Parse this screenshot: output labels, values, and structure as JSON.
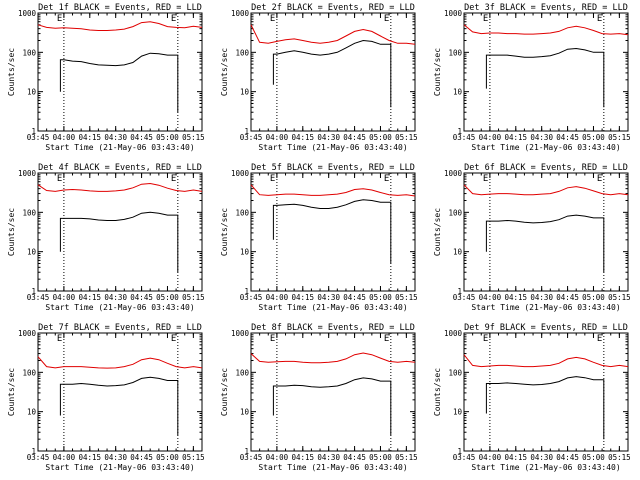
{
  "colors": {
    "events": "#000000",
    "lld": "#e00000",
    "axes": "#000000",
    "background": "#ffffff"
  },
  "chart_data": [
    {
      "type": "line",
      "title": "Det 1f BLACK = Events, RED = LLD",
      "xlabel": "Start Time (21-May-06 03:43:40)",
      "ylabel": "Counts/sec",
      "yscale": "log",
      "ylim": [
        1,
        1000
      ],
      "yticks": [
        "1",
        "10",
        "100",
        "1000"
      ],
      "xticks": [
        "03:45",
        "04:00",
        "04:15",
        "04:30",
        "04:45",
        "05:00",
        "05:15"
      ],
      "x_range": [
        "03:45",
        "05:20"
      ],
      "marker_lines": [
        "04:00",
        "05:06"
      ],
      "marker_labels": [
        "E",
        "E"
      ],
      "x": [
        "03:45",
        "03:50",
        "03:55",
        "04:00",
        "04:05",
        "04:10",
        "04:15",
        "04:20",
        "04:25",
        "04:30",
        "04:35",
        "04:40",
        "04:45",
        "04:50",
        "04:55",
        "05:00",
        "05:05",
        "05:10",
        "05:15",
        "05:20"
      ],
      "series": [
        {
          "name": "Events",
          "values": [
            null,
            null,
            null,
            65,
            60,
            58,
            52,
            48,
            47,
            46,
            48,
            55,
            80,
            95,
            92,
            85,
            null,
            null,
            null,
            null
          ],
          "segment_start": {
            "x": "03:58",
            "value": 10
          },
          "segment_end": {
            "x": "05:06",
            "value": 3
          }
        },
        {
          "name": "LLD",
          "values": [
            500,
            430,
            410,
            420,
            410,
            400,
            370,
            360,
            360,
            370,
            390,
            450,
            570,
            600,
            540,
            450,
            430,
            420,
            460,
            430
          ]
        }
      ]
    },
    {
      "type": "line",
      "title": "Det 2f BLACK = Events, RED = LLD",
      "xlabel": "Start Time (21-May-06 03:43:40)",
      "ylabel": "Counts/sec",
      "yscale": "log",
      "ylim": [
        1,
        1000
      ],
      "yticks": [
        "1",
        "10",
        "100",
        "1000"
      ],
      "xticks": [
        "03:45",
        "04:00",
        "04:15",
        "04:30",
        "04:45",
        "05:00",
        "05:15"
      ],
      "x_range": [
        "03:45",
        "05:20"
      ],
      "marker_lines": [
        "04:00",
        "05:06"
      ],
      "marker_labels": [
        "E",
        "E"
      ],
      "x": [
        "03:45",
        "03:50",
        "03:55",
        "04:00",
        "04:05",
        "04:10",
        "04:15",
        "04:20",
        "04:25",
        "04:30",
        "04:35",
        "04:40",
        "04:45",
        "04:50",
        "04:55",
        "05:00",
        "05:05",
        "05:10",
        "05:15",
        "05:20"
      ],
      "series": [
        {
          "name": "Events",
          "values": [
            null,
            null,
            null,
            90,
            100,
            110,
            100,
            90,
            85,
            90,
            100,
            130,
            170,
            200,
            190,
            160,
            null,
            null,
            null,
            null
          ],
          "segment_start": {
            "x": "03:58",
            "value": 15
          },
          "segment_end": {
            "x": "05:06",
            "value": 4
          }
        },
        {
          "name": "LLD",
          "values": [
            500,
            180,
            170,
            190,
            210,
            220,
            200,
            180,
            170,
            180,
            200,
            260,
            340,
            380,
            340,
            260,
            200,
            170,
            170,
            160
          ]
        }
      ]
    },
    {
      "type": "line",
      "title": "Det 3f BLACK = Events, RED = LLD",
      "xlabel": "Start Time (21-May-06 03:43:40)",
      "ylabel": "Counts/sec",
      "yscale": "log",
      "ylim": [
        1,
        1000
      ],
      "yticks": [
        "1",
        "10",
        "100",
        "1000"
      ],
      "xticks": [
        "03:45",
        "04:00",
        "04:15",
        "04:30",
        "04:45",
        "05:00",
        "05:15"
      ],
      "x_range": [
        "03:45",
        "05:20"
      ],
      "marker_lines": [
        "04:00",
        "05:06"
      ],
      "marker_labels": [
        "E",
        "E"
      ],
      "x": [
        "03:45",
        "03:50",
        "03:55",
        "04:00",
        "04:05",
        "04:10",
        "04:15",
        "04:20",
        "04:25",
        "04:30",
        "04:35",
        "04:40",
        "04:45",
        "04:50",
        "04:55",
        "05:00",
        "05:05",
        "05:10",
        "05:15",
        "05:20"
      ],
      "series": [
        {
          "name": "Events",
          "values": [
            null,
            null,
            null,
            85,
            85,
            85,
            80,
            75,
            75,
            78,
            82,
            95,
            120,
            125,
            115,
            100,
            null,
            null,
            null,
            null
          ],
          "segment_start": {
            "x": "03:58",
            "value": 12
          },
          "segment_end": {
            "x": "05:06",
            "value": 4
          }
        },
        {
          "name": "LLD",
          "values": [
            500,
            330,
            300,
            310,
            310,
            300,
            300,
            290,
            290,
            300,
            310,
            340,
            420,
            460,
            420,
            360,
            300,
            290,
            300,
            280
          ]
        }
      ]
    },
    {
      "type": "line",
      "title": "Det 4f BLACK = Events, RED = LLD",
      "xlabel": "Start Time (21-May-06 03:43:40)",
      "ylabel": "Counts/sec",
      "yscale": "log",
      "ylim": [
        1,
        1000
      ],
      "yticks": [
        "1",
        "10",
        "100",
        "1000"
      ],
      "xticks": [
        "03:45",
        "04:00",
        "04:15",
        "04:30",
        "04:45",
        "05:00",
        "05:15"
      ],
      "x_range": [
        "03:45",
        "05:20"
      ],
      "marker_lines": [
        "04:00",
        "05:06"
      ],
      "marker_labels": [
        "E",
        "E"
      ],
      "x": [
        "03:45",
        "03:50",
        "03:55",
        "04:00",
        "04:05",
        "04:10",
        "04:15",
        "04:20",
        "04:25",
        "04:30",
        "04:35",
        "04:40",
        "04:45",
        "04:50",
        "04:55",
        "05:00",
        "05:05",
        "05:10",
        "05:15",
        "05:20"
      ],
      "series": [
        {
          "name": "Events",
          "values": [
            null,
            null,
            null,
            70,
            70,
            70,
            68,
            64,
            62,
            62,
            66,
            75,
            95,
            100,
            95,
            85,
            null,
            null,
            null,
            null
          ],
          "segment_start": {
            "x": "03:58",
            "value": 10
          },
          "segment_end": {
            "x": "05:06",
            "value": 3
          }
        },
        {
          "name": "LLD",
          "values": [
            500,
            360,
            340,
            370,
            380,
            370,
            350,
            340,
            340,
            350,
            370,
            420,
            520,
            540,
            490,
            410,
            360,
            340,
            370,
            340
          ]
        }
      ]
    },
    {
      "type": "line",
      "title": "Det 5f BLACK = Events, RED = LLD",
      "xlabel": "Start Time (21-May-06 03:43:40)",
      "ylabel": "Counts/sec",
      "yscale": "log",
      "ylim": [
        1,
        1000
      ],
      "yticks": [
        "1",
        "10",
        "100",
        "1000"
      ],
      "xticks": [
        "03:45",
        "04:00",
        "04:15",
        "04:30",
        "04:45",
        "05:00",
        "05:15"
      ],
      "x_range": [
        "03:45",
        "05:20"
      ],
      "marker_lines": [
        "04:00",
        "05:06"
      ],
      "marker_labels": [
        "E",
        "E"
      ],
      "x": [
        "03:45",
        "03:50",
        "03:55",
        "04:00",
        "04:05",
        "04:10",
        "04:15",
        "04:20",
        "04:25",
        "04:30",
        "04:35",
        "04:40",
        "04:45",
        "04:50",
        "04:55",
        "05:00",
        "05:05",
        "05:10",
        "05:15",
        "05:20"
      ],
      "series": [
        {
          "name": "Events",
          "values": [
            null,
            null,
            null,
            150,
            155,
            160,
            150,
            135,
            125,
            125,
            135,
            155,
            190,
            210,
            200,
            180,
            null,
            null,
            null,
            null
          ],
          "segment_start": {
            "x": "03:58",
            "value": 20
          },
          "segment_end": {
            "x": "05:06",
            "value": 5
          }
        },
        {
          "name": "LLD",
          "values": [
            500,
            280,
            270,
            280,
            290,
            290,
            280,
            270,
            270,
            280,
            290,
            320,
            380,
            400,
            370,
            320,
            280,
            270,
            280,
            260
          ]
        }
      ]
    },
    {
      "type": "line",
      "title": "Det 6f BLACK = Events, RED = LLD",
      "xlabel": "Start Time (21-May-06 03:43:40)",
      "ylabel": "Counts/sec",
      "yscale": "log",
      "ylim": [
        1,
        1000
      ],
      "yticks": [
        "1",
        "10",
        "100",
        "1000"
      ],
      "xticks": [
        "03:45",
        "04:00",
        "04:15",
        "04:30",
        "04:45",
        "05:00",
        "05:15"
      ],
      "x_range": [
        "03:45",
        "05:20"
      ],
      "marker_lines": [
        "04:00",
        "05:06"
      ],
      "marker_labels": [
        "E",
        "E"
      ],
      "x": [
        "03:45",
        "03:50",
        "03:55",
        "04:00",
        "04:05",
        "04:10",
        "04:15",
        "04:20",
        "04:25",
        "04:30",
        "04:35",
        "04:40",
        "04:45",
        "04:50",
        "04:55",
        "05:00",
        "05:05",
        "05:10",
        "05:15",
        "05:20"
      ],
      "series": [
        {
          "name": "Events",
          "values": [
            null,
            null,
            null,
            60,
            60,
            62,
            60,
            56,
            54,
            55,
            58,
            65,
            80,
            85,
            80,
            72,
            null,
            null,
            null,
            null
          ],
          "segment_start": {
            "x": "03:58",
            "value": 10
          },
          "segment_end": {
            "x": "05:06",
            "value": 3
          }
        },
        {
          "name": "LLD",
          "values": [
            500,
            300,
            280,
            290,
            300,
            300,
            290,
            280,
            280,
            290,
            300,
            340,
            420,
            450,
            410,
            350,
            300,
            280,
            300,
            280
          ]
        }
      ]
    },
    {
      "type": "line",
      "title": "Det 7f BLACK = Events, RED = LLD",
      "xlabel": "Start Time (21-May-06 03:43:40)",
      "ylabel": "Counts/sec",
      "yscale": "log",
      "ylim": [
        1,
        1000
      ],
      "yticks": [
        "1",
        "10",
        "100",
        "1000"
      ],
      "xticks": [
        "03:45",
        "04:00",
        "04:15",
        "04:30",
        "04:45",
        "05:00",
        "05:15"
      ],
      "x_range": [
        "03:45",
        "05:20"
      ],
      "marker_lines": [
        "04:00",
        "05:06"
      ],
      "marker_labels": [
        "E",
        "E"
      ],
      "x": [
        "03:45",
        "03:50",
        "03:55",
        "04:00",
        "04:05",
        "04:10",
        "04:15",
        "04:20",
        "04:25",
        "04:30",
        "04:35",
        "04:40",
        "04:45",
        "04:50",
        "04:55",
        "05:00",
        "05:05",
        "05:10",
        "05:15",
        "05:20"
      ],
      "series": [
        {
          "name": "Events",
          "values": [
            null,
            null,
            null,
            50,
            50,
            52,
            50,
            47,
            45,
            46,
            48,
            55,
            70,
            75,
            70,
            62,
            null,
            null,
            null,
            null
          ],
          "segment_start": {
            "x": "03:58",
            "value": 8
          },
          "segment_end": {
            "x": "05:06",
            "value": 2.5
          }
        },
        {
          "name": "LLD",
          "values": [
            250,
            140,
            130,
            140,
            140,
            140,
            135,
            130,
            128,
            130,
            140,
            160,
            210,
            230,
            210,
            170,
            140,
            130,
            140,
            130
          ]
        }
      ]
    },
    {
      "type": "line",
      "title": "Det 8f BLACK = Events, RED = LLD",
      "xlabel": "Start Time (21-May-06 03:43:40)",
      "ylabel": "Counts/sec",
      "yscale": "log",
      "ylim": [
        1,
        1000
      ],
      "yticks": [
        "1",
        "10",
        "100",
        "1000"
      ],
      "xticks": [
        "03:45",
        "04:00",
        "04:15",
        "04:30",
        "04:45",
        "05:00",
        "05:15"
      ],
      "x_range": [
        "03:45",
        "05:20"
      ],
      "marker_lines": [
        "04:00",
        "05:06"
      ],
      "marker_labels": [
        "E",
        "E"
      ],
      "x": [
        "03:45",
        "03:50",
        "03:55",
        "04:00",
        "04:05",
        "04:10",
        "04:15",
        "04:20",
        "04:25",
        "04:30",
        "04:35",
        "04:40",
        "04:45",
        "04:50",
        "04:55",
        "05:00",
        "05:05",
        "05:10",
        "05:15",
        "05:20"
      ],
      "series": [
        {
          "name": "Events",
          "values": [
            null,
            null,
            null,
            45,
            45,
            47,
            46,
            43,
            42,
            43,
            45,
            52,
            65,
            72,
            68,
            60,
            null,
            null,
            null,
            null
          ],
          "segment_start": {
            "x": "03:58",
            "value": 8
          },
          "segment_end": {
            "x": "05:06",
            "value": 2.5
          }
        },
        {
          "name": "LLD",
          "values": [
            300,
            190,
            180,
            185,
            190,
            190,
            180,
            175,
            175,
            180,
            190,
            220,
            280,
            310,
            280,
            230,
            190,
            180,
            190,
            180
          ]
        }
      ]
    },
    {
      "type": "line",
      "title": "Det 9f BLACK = Events, RED = LLD",
      "xlabel": "Start Time (21-May-06 03:43:40)",
      "ylabel": "Counts/sec",
      "yscale": "log",
      "ylim": [
        1,
        1000
      ],
      "yticks": [
        "1",
        "10",
        "100",
        "1000"
      ],
      "xticks": [
        "03:45",
        "04:00",
        "04:15",
        "04:30",
        "04:45",
        "05:00",
        "05:15"
      ],
      "x_range": [
        "03:45",
        "05:20"
      ],
      "marker_lines": [
        "04:00",
        "05:06"
      ],
      "marker_labels": [
        "E",
        "E"
      ],
      "x": [
        "03:45",
        "03:50",
        "03:55",
        "04:00",
        "04:05",
        "04:10",
        "04:15",
        "04:20",
        "04:25",
        "04:30",
        "04:35",
        "04:40",
        "04:45",
        "04:50",
        "04:55",
        "05:00",
        "05:05",
        "05:10",
        "05:15",
        "05:20"
      ],
      "series": [
        {
          "name": "Events",
          "values": [
            null,
            null,
            null,
            52,
            52,
            54,
            52,
            50,
            48,
            49,
            52,
            58,
            72,
            78,
            73,
            65,
            null,
            null,
            null,
            null
          ],
          "segment_start": {
            "x": "03:58",
            "value": 9
          },
          "segment_end": {
            "x": "05:06",
            "value": 2
          }
        },
        {
          "name": "LLD",
          "values": [
            280,
            150,
            140,
            145,
            150,
            150,
            145,
            140,
            140,
            145,
            150,
            170,
            220,
            240,
            220,
            180,
            150,
            140,
            150,
            140
          ]
        }
      ]
    }
  ]
}
